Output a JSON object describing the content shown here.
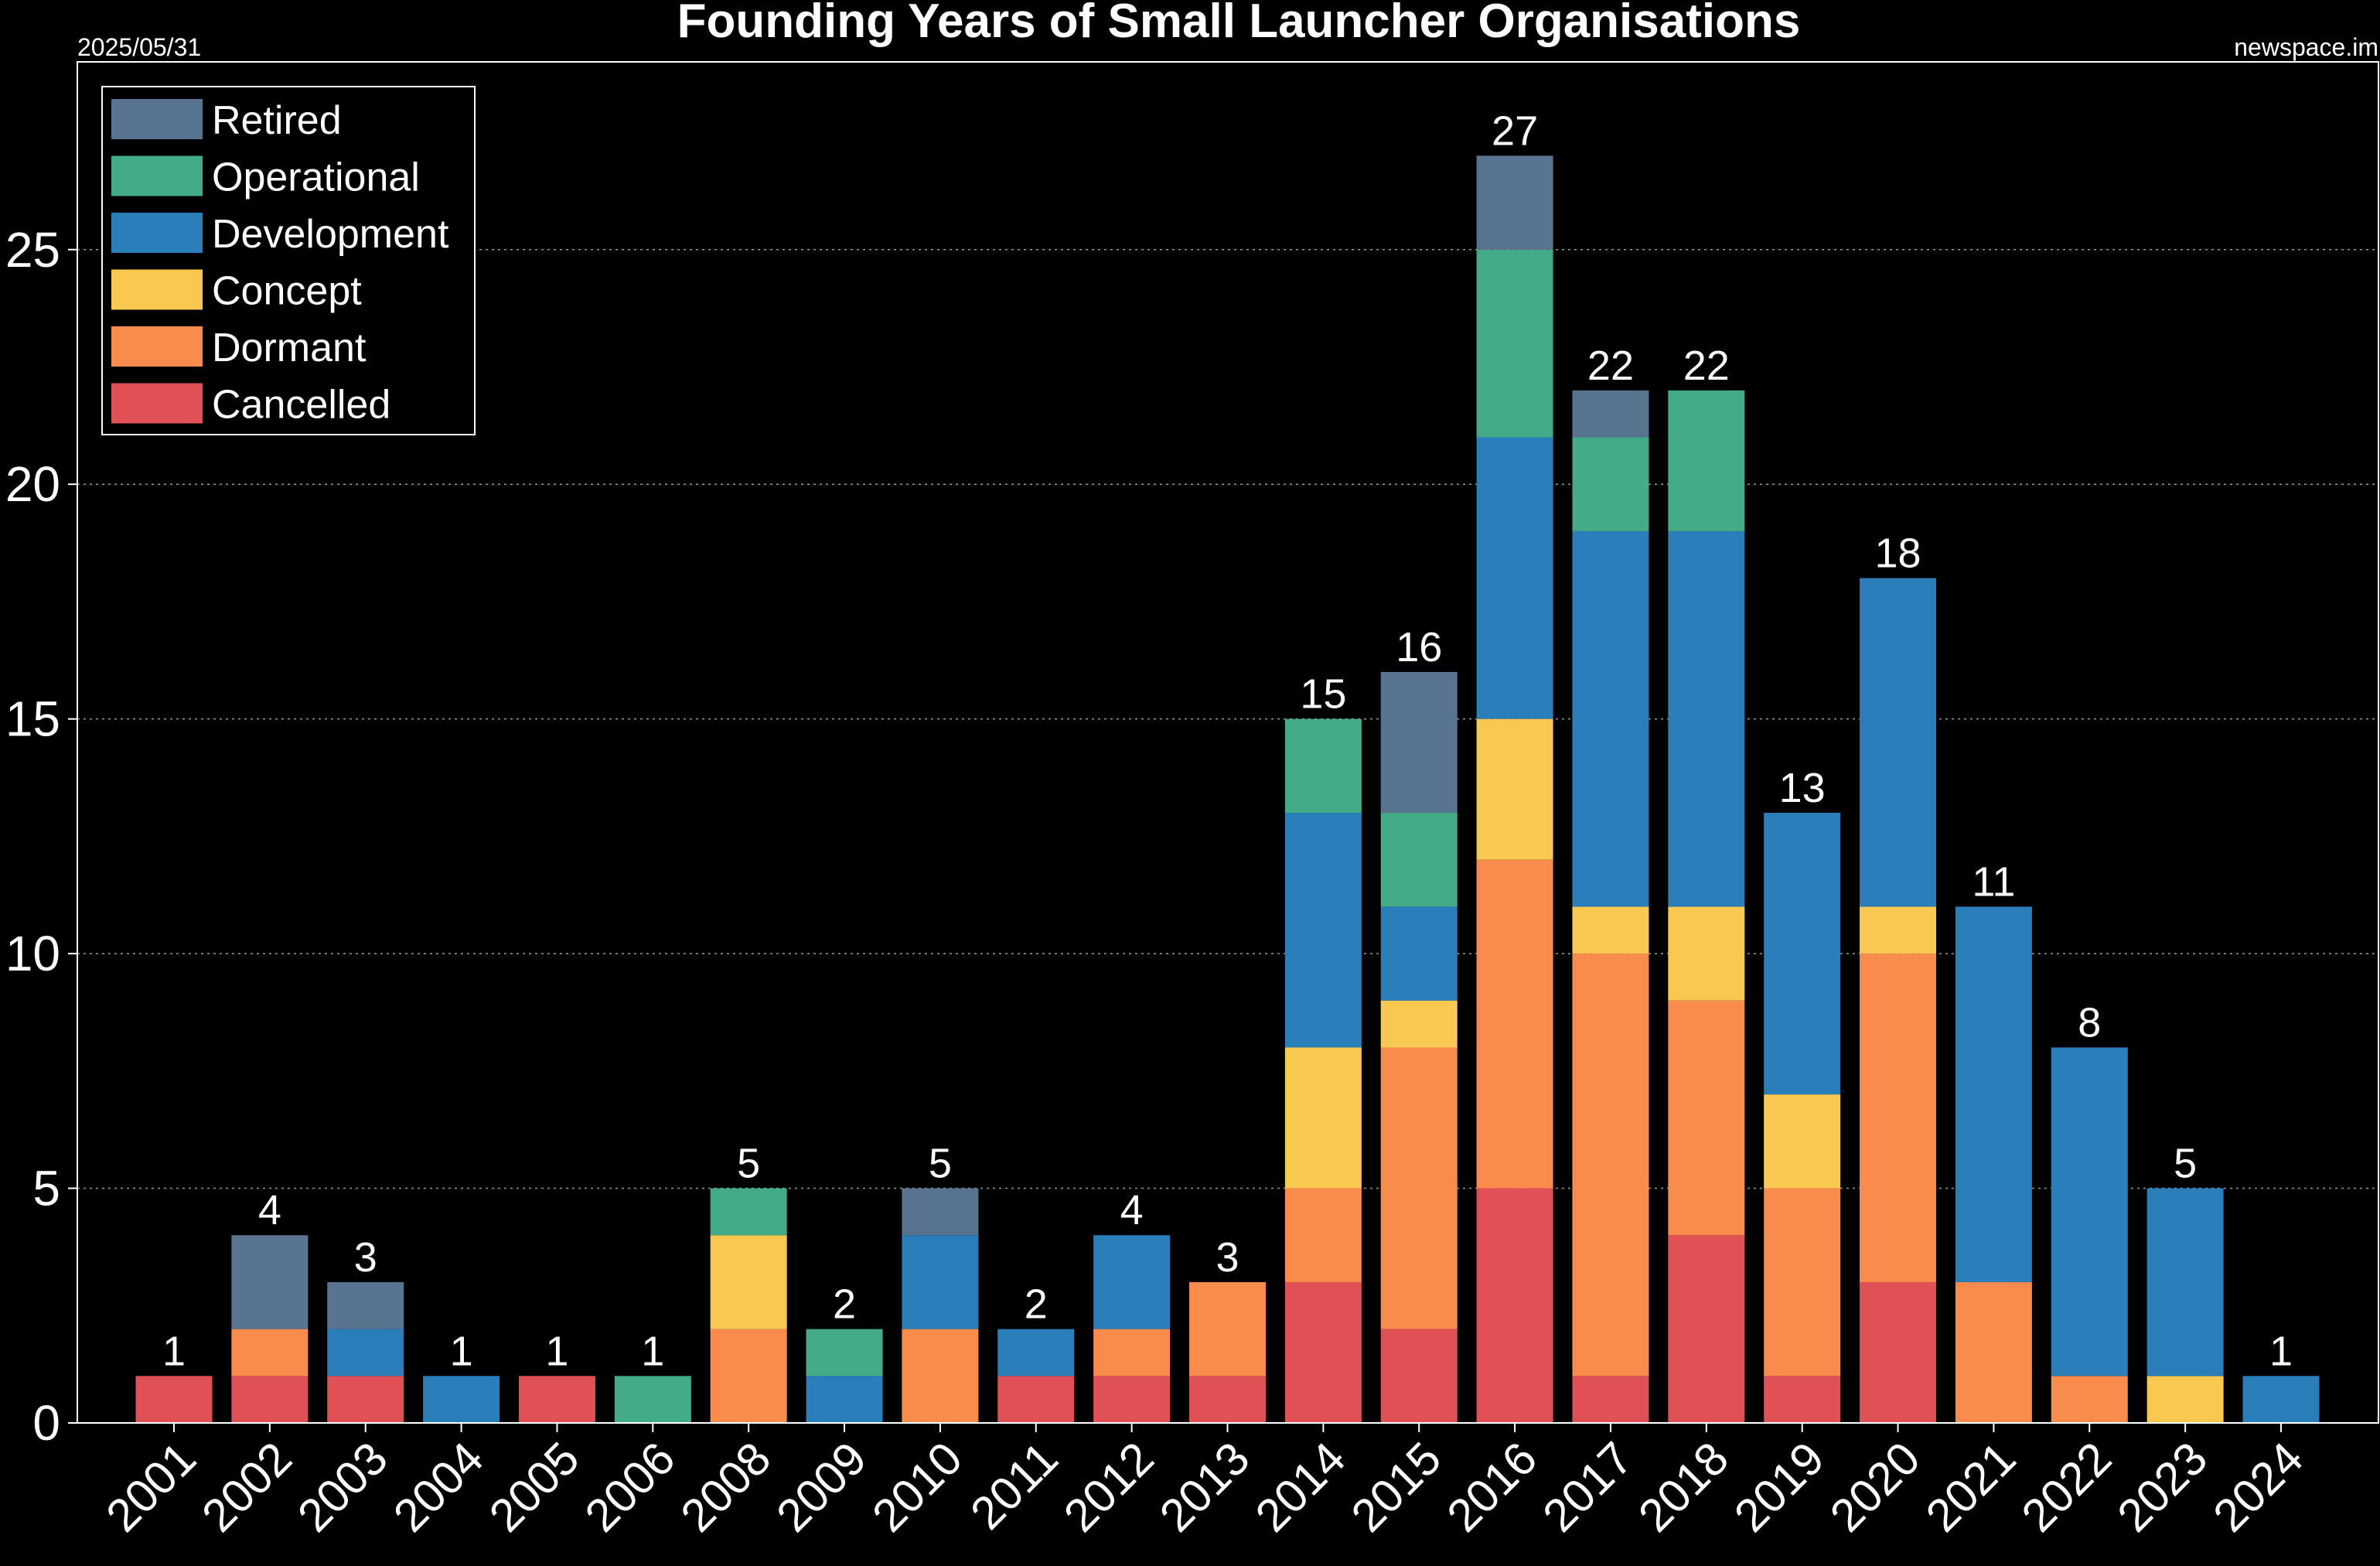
{
  "header": {
    "date": "2025/05/31",
    "source": "newspace.im"
  },
  "chart_data": {
    "type": "bar",
    "stacked": true,
    "title": "Founding Years of Small Launcher Organisations",
    "xlabel": "",
    "ylabel": "",
    "ylim": [
      0,
      29
    ],
    "yticks": [
      0,
      5,
      10,
      15,
      20,
      25
    ],
    "grid": "horizontal dotted",
    "legend_position": "top-left",
    "categories": [
      "2001",
      "2002",
      "2003",
      "2004",
      "2005",
      "2006",
      "2008",
      "2009",
      "2010",
      "2011",
      "2012",
      "2013",
      "2014",
      "2015",
      "2016",
      "2017",
      "2018",
      "2019",
      "2020",
      "2021",
      "2022",
      "2023",
      "2024"
    ],
    "series": [
      {
        "name": "Cancelled",
        "color": "#e05055",
        "values": [
          1,
          1,
          1,
          0,
          1,
          0,
          0,
          0,
          0,
          1,
          1,
          1,
          3,
          2,
          5,
          1,
          4,
          1,
          3,
          0,
          0,
          0,
          0
        ]
      },
      {
        "name": "Dormant",
        "color": "#f98b4c",
        "values": [
          0,
          1,
          0,
          0,
          0,
          0,
          2,
          0,
          2,
          0,
          1,
          2,
          2,
          6,
          7,
          9,
          5,
          4,
          7,
          3,
          1,
          0,
          0
        ]
      },
      {
        "name": "Concept",
        "color": "#f9c851",
        "values": [
          0,
          0,
          0,
          0,
          0,
          0,
          2,
          0,
          0,
          0,
          0,
          0,
          3,
          1,
          3,
          1,
          2,
          2,
          1,
          0,
          0,
          1,
          0
        ]
      },
      {
        "name": "Development",
        "color": "#2a7eba",
        "values": [
          0,
          0,
          1,
          1,
          0,
          0,
          0,
          1,
          2,
          1,
          2,
          0,
          5,
          2,
          6,
          8,
          8,
          6,
          7,
          8,
          7,
          4,
          1
        ]
      },
      {
        "name": "Operational",
        "color": "#44ab89",
        "values": [
          0,
          0,
          0,
          0,
          0,
          1,
          1,
          1,
          0,
          0,
          0,
          0,
          2,
          2,
          4,
          2,
          3,
          0,
          0,
          0,
          0,
          0,
          0
        ]
      },
      {
        "name": "Retired",
        "color": "#587490",
        "values": [
          0,
          2,
          1,
          0,
          0,
          0,
          0,
          0,
          1,
          0,
          0,
          0,
          0,
          3,
          2,
          1,
          0,
          0,
          0,
          0,
          0,
          0,
          0
        ]
      }
    ],
    "totals": [
      1,
      4,
      3,
      1,
      1,
      1,
      5,
      2,
      5,
      2,
      4,
      3,
      15,
      16,
      27,
      22,
      22,
      13,
      18,
      11,
      8,
      5,
      1
    ],
    "legend_order": [
      "Retired",
      "Operational",
      "Development",
      "Concept",
      "Dormant",
      "Cancelled"
    ]
  }
}
